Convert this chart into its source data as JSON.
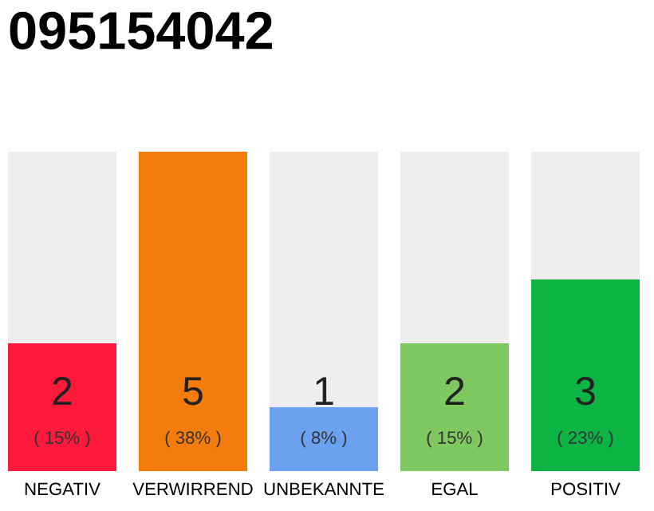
{
  "chart_data": {
    "type": "bar",
    "title": "095154042",
    "categories": [
      "NEGATIV",
      "VERWIRREND",
      "UNBEKANNTE",
      "EGAL",
      "POSITIV"
    ],
    "values": [
      2,
      5,
      1,
      2,
      3
    ],
    "colors": [
      "#ff1a3c",
      "#f47c0c",
      "#6aa2f0",
      "#7ec95f",
      "#0bb443"
    ],
    "ylim": [
      0,
      5
    ],
    "data_labels": true,
    "annotations": [
      "( 15% )",
      "( 38% )",
      "( 8% )",
      "( 15% )",
      "( 23% )"
    ],
    "tick_labels": "x",
    "grid": false
  }
}
